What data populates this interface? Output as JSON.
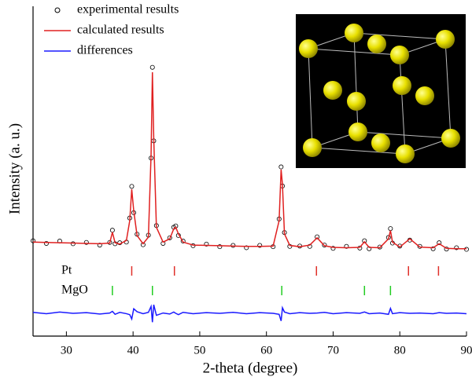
{
  "chart_data": {
    "type": "line",
    "xlabel": "2-theta (degree)",
    "ylabel": "Intensity (a. u.)",
    "xlim": [
      25,
      90
    ],
    "xticks": [
      30,
      40,
      50,
      60,
      70,
      80,
      90
    ],
    "ylim": [
      0,
      100
    ],
    "yticks": [],
    "x": [
      25,
      27,
      29,
      31,
      33,
      35,
      36.5,
      36.9,
      37.3,
      38,
      39,
      39.5,
      39.8,
      40.1,
      40.6,
      41.5,
      42.3,
      42.7,
      42.9,
      43.1,
      43.5,
      44.5,
      45.5,
      46.1,
      46.4,
      46.8,
      47.5,
      49,
      51,
      53,
      55,
      57,
      59,
      61,
      61.9,
      62.2,
      62.4,
      62.7,
      63.5,
      65,
      66.5,
      67.6,
      68.7,
      70,
      72,
      74,
      74.7,
      75.4,
      77,
      78.3,
      78.6,
      78.9,
      80,
      81.5,
      83,
      85,
      85.9,
      87,
      88.5,
      90
    ],
    "series": [
      {
        "name": "experimental results",
        "color": "#000000",
        "marker": "circle",
        "values": [
          28.9,
          28.1,
          28.8,
          28.0,
          28.4,
          27.6,
          28.4,
          32.1,
          28.0,
          28.3,
          28.5,
          35.8,
          45.4,
          37.4,
          30.9,
          27.7,
          30.6,
          54.0,
          81.5,
          59.2,
          33.5,
          28.1,
          29.8,
          33.0,
          33.4,
          30.5,
          28.8,
          27.4,
          27.9,
          27.1,
          27.5,
          26.8,
          27.5,
          27.1,
          35.5,
          51.3,
          45.5,
          31.4,
          27.2,
          27.3,
          27.2,
          30.1,
          27.6,
          26.6,
          27.2,
          26.7,
          28.9,
          26.5,
          27.0,
          29.9,
          32.6,
          28.2,
          27.3,
          29.1,
          27.2,
          26.5,
          28.3,
          26.4,
          26.8,
          26.3
        ]
      },
      {
        "name": "calculated results",
        "color": "#e02020",
        "marker": "line",
        "values": [
          28.5,
          28.4,
          28.3,
          28.2,
          28.1,
          28.0,
          28.2,
          31.5,
          28.3,
          27.9,
          29.0,
          35.0,
          44.5,
          38.0,
          30.5,
          28.0,
          30.0,
          55.0,
          80.0,
          60.0,
          33.0,
          28.5,
          29.5,
          32.5,
          33.0,
          31.0,
          28.5,
          27.6,
          27.5,
          27.4,
          27.3,
          27.2,
          27.2,
          27.3,
          35.0,
          50.5,
          46.0,
          31.0,
          27.5,
          27.1,
          27.6,
          29.8,
          27.4,
          26.9,
          26.8,
          26.9,
          28.6,
          26.9,
          26.8,
          29.5,
          32.0,
          28.5,
          27.0,
          29.5,
          27.0,
          26.8,
          28.0,
          26.6,
          26.5,
          26.5
        ]
      },
      {
        "name": "differences",
        "color": "#1a1aff",
        "marker": "line",
        "values": [
          7.2,
          6.8,
          7.3,
          6.9,
          7.1,
          6.7,
          7.0,
          7.5,
          6.6,
          7.2,
          6.8,
          6.5,
          5.2,
          8.3,
          7.4,
          6.8,
          7.2,
          9.0,
          4.2,
          9.5,
          6.3,
          7.0,
          6.7,
          7.3,
          6.9,
          6.5,
          7.2,
          6.8,
          7.1,
          6.9,
          7.2,
          6.8,
          7.1,
          6.9,
          6.6,
          4.6,
          8.6,
          7.3,
          6.8,
          7.1,
          6.9,
          7.0,
          7.2,
          6.8,
          7.1,
          6.9,
          7.3,
          6.8,
          7.0,
          6.6,
          8.4,
          6.8,
          7.1,
          6.9,
          7.0,
          6.8,
          7.1,
          6.9,
          7.0,
          6.8
        ]
      }
    ],
    "reflections": [
      {
        "name": "Pt",
        "color": "#e0302a",
        "positions": [
          39.8,
          46.2,
          67.5,
          81.3,
          85.8
        ]
      },
      {
        "name": "MgO",
        "color": "#22cc22",
        "positions": [
          36.9,
          42.9,
          62.3,
          74.7,
          78.6
        ]
      }
    ],
    "legend": "upper left"
  }
}
